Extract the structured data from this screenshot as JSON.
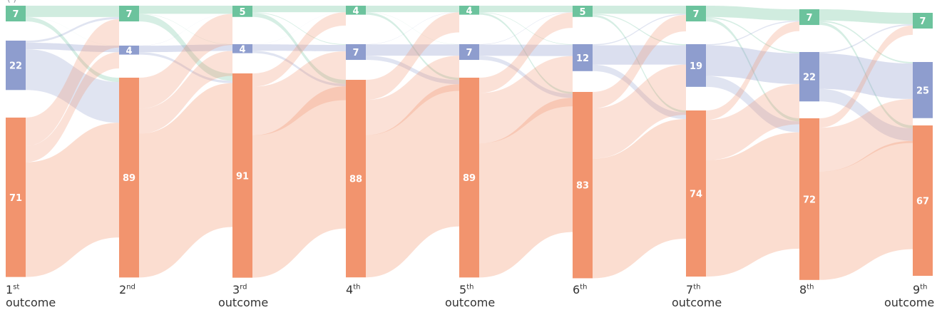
{
  "caption": "(                    )",
  "colors": {
    "A": "#6cc39d",
    "B": "#8e9dce",
    "C": "#f2946e"
  },
  "stages": [
    {
      "num": "1",
      "sup": "st",
      "word": "outcome"
    },
    {
      "num": "2",
      "sup": "nd",
      "word": ""
    },
    {
      "num": "3",
      "sup": "rd",
      "word": "outcome"
    },
    {
      "num": "4",
      "sup": "th",
      "word": ""
    },
    {
      "num": "5",
      "sup": "th",
      "word": "outcome"
    },
    {
      "num": "6",
      "sup": "th",
      "word": ""
    },
    {
      "num": "7",
      "sup": "th",
      "word": "outcome"
    },
    {
      "num": "8",
      "sup": "th",
      "word": ""
    },
    {
      "num": "9",
      "sup": "th",
      "word": "outcome"
    }
  ],
  "nodes": [
    {
      "A": 7,
      "B": 22,
      "C": 71
    },
    {
      "A": 7,
      "B": 4,
      "C": 89
    },
    {
      "A": 5,
      "B": 4,
      "C": 91
    },
    {
      "A": 4,
      "B": 7,
      "C": 88
    },
    {
      "A": 4,
      "B": 7,
      "C": 89
    },
    {
      "A": 5,
      "B": 12,
      "C": 83
    },
    {
      "A": 7,
      "B": 19,
      "C": 74
    },
    {
      "A": 7,
      "B": 22,
      "C": 72
    },
    {
      "A": 7,
      "B": 25,
      "C": 67
    }
  ]
}
